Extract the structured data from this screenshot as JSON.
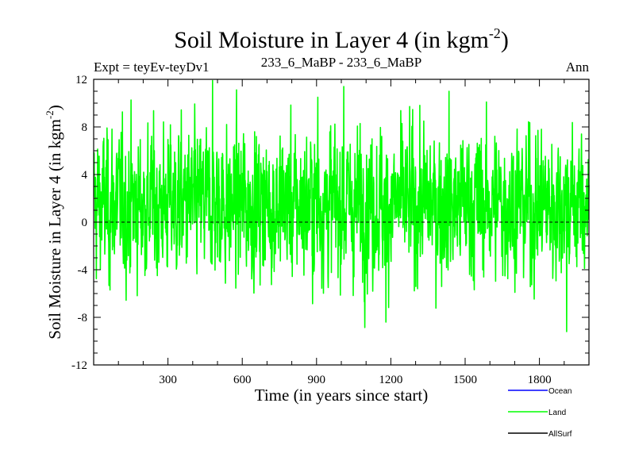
{
  "chart_data": {
    "type": "line",
    "title": "Soil Moisture in Layer 4 (in kgm",
    "title_sup": "-2",
    "title_close": ")",
    "subtitle_left": "Expt = teyEv-teyDv1",
    "subtitle_center": "233_6_MaBP - 233_6_MaBP",
    "subtitle_right": "Ann",
    "xlabel": "Time (in years since start)",
    "ylabel": "Soil Moisture in Layer 4 (in kgm",
    "ylabel_sup": "-2",
    "ylabel_close": ")",
    "xlim": [
      0,
      2000
    ],
    "ylim": [
      -12,
      12
    ],
    "x_ticks": [
      300,
      600,
      900,
      1200,
      1500,
      1800
    ],
    "y_ticks": [
      -12,
      -8,
      -4,
      0,
      4,
      8,
      12
    ],
    "zero_line": true,
    "series": [
      {
        "name": "Ocean",
        "color": "#0000ff",
        "values": []
      },
      {
        "name": "Land",
        "color": "#00ff00",
        "x_start": 1,
        "x_step": 1,
        "n_points": 2000,
        "summary": {
          "mean": 1.5,
          "min": -9.2,
          "max": 11.9
        },
        "notable_peaks": [
          [
            480,
            11.9
          ],
          [
            1010,
            11.4
          ],
          [
            905,
            10.5
          ],
          [
            1435,
            11.0
          ],
          [
            1180,
            -8.4
          ],
          [
            1910,
            -9.2
          ]
        ]
      },
      {
        "name": "AllSurf",
        "color": "#000000",
        "values": []
      }
    ]
  }
}
